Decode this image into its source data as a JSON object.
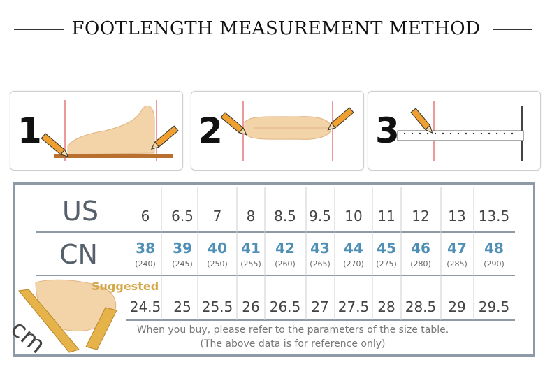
{
  "title": "FOOTLENGTH MEASUREMENT METHOD",
  "steps": [
    {
      "number": "1",
      "icon": "foot-side-view-measurement-icon"
    },
    {
      "number": "2",
      "icon": "foot-top-view-measurement-icon"
    },
    {
      "number": "3",
      "icon": "ruler-measurement-icon"
    }
  ],
  "table": {
    "us_label": "US",
    "cn_label": "CN",
    "suggested_label": "Suggested",
    "cm_label": "cm",
    "us": [
      "6",
      "6.5",
      "7",
      "8",
      "8.5",
      "9.5",
      "10",
      "11",
      "12",
      "13",
      "13.5"
    ],
    "cn": [
      "38",
      "39",
      "40",
      "41",
      "42",
      "43",
      "44",
      "45",
      "46",
      "47",
      "48"
    ],
    "cn_mm": [
      "(240)",
      "(245)",
      "(250)",
      "(255)",
      "(260)",
      "(265)",
      "(270)",
      "(275)",
      "(280)",
      "(285)",
      "(290)"
    ],
    "cm": [
      "24.5",
      "25",
      "25.5",
      "26",
      "26.5",
      "27",
      "27.5",
      "28",
      "28.5",
      "29",
      "29.5"
    ],
    "note_line1": "When you buy, please refer to the parameters of the size table.",
    "note_line2": "(The above data is for reference only)"
  },
  "colors": {
    "border": "#8e9aa6",
    "cn_value": "#4f8fb5",
    "suggested": "#d4a84a",
    "pencil": "#f0a030",
    "foot": "#f3d3a8"
  }
}
